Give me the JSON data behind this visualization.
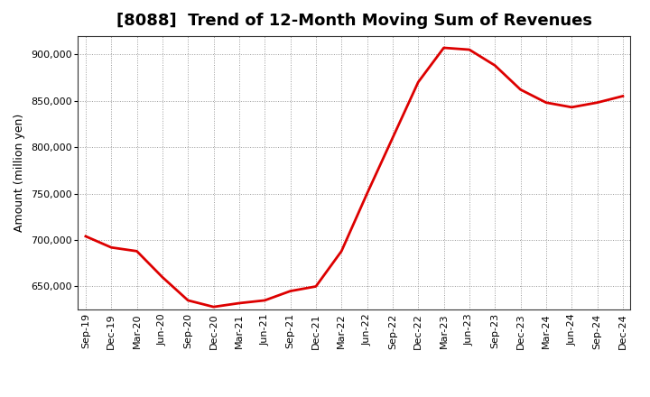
{
  "title": "[8088]  Trend of 12-Month Moving Sum of Revenues",
  "ylabel": "Amount (million yen)",
  "background_color": "#ffffff",
  "plot_bg_color": "#ffffff",
  "line_color": "#dd0000",
  "line_width": 2.0,
  "x_labels": [
    "Sep-19",
    "Dec-19",
    "Mar-20",
    "Jun-20",
    "Sep-20",
    "Dec-20",
    "Mar-21",
    "Jun-21",
    "Sep-21",
    "Dec-21",
    "Mar-22",
    "Jun-22",
    "Sep-22",
    "Dec-22",
    "Mar-23",
    "Jun-23",
    "Sep-23",
    "Dec-23",
    "Mar-24",
    "Jun-24",
    "Sep-24",
    "Dec-24"
  ],
  "y_values": [
    704000,
    692000,
    688000,
    660000,
    635000,
    628000,
    632000,
    635000,
    645000,
    650000,
    688000,
    750000,
    810000,
    870000,
    907000,
    905000,
    888000,
    862000,
    848000,
    843000,
    848000,
    855000
  ],
  "ylim": [
    625000,
    920000
  ],
  "yticks": [
    650000,
    700000,
    750000,
    800000,
    850000,
    900000
  ],
  "grid_color": "#999999",
  "grid_linestyle": ":",
  "title_fontsize": 13,
  "tick_fontsize": 8,
  "ylabel_fontsize": 9,
  "spine_color": "#333333"
}
